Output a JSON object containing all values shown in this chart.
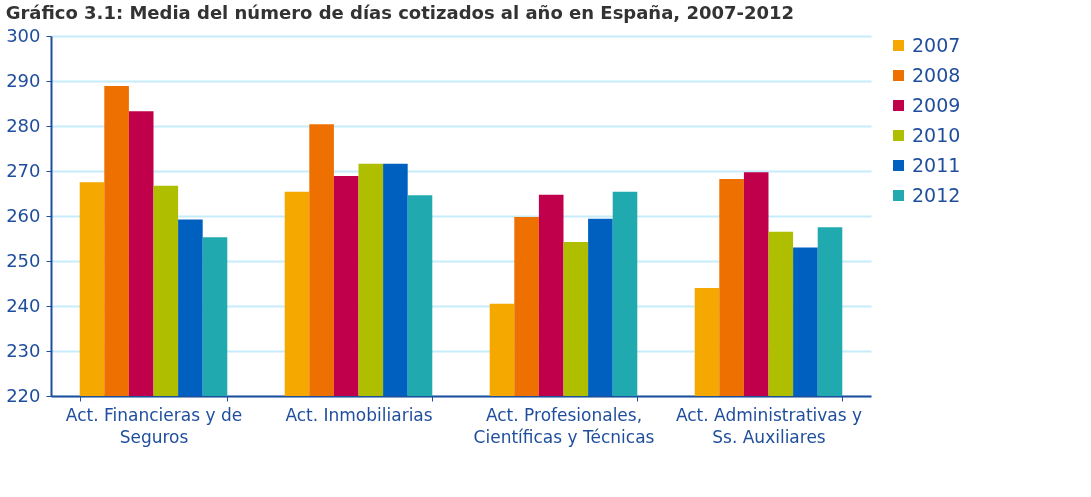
{
  "chart_data": {
    "type": "bar",
    "title": "Gráfico 3.1: Media del número de días cotizados al año en España, 2007-2012",
    "categories": [
      "Act. Financieras y de Seguros",
      "Act. Inmobiliarias",
      "Act. Profesionales, Científicas y Técnicas",
      "Act. Administrativas y Ss. Auxiliares"
    ],
    "series": [
      {
        "name": "2007",
        "color": "#f5a800",
        "values": [
          267.5,
          265.4,
          240.5,
          244.0
        ]
      },
      {
        "name": "2008",
        "color": "#ee7000",
        "values": [
          288.9,
          280.4,
          259.8,
          268.2
        ]
      },
      {
        "name": "2009",
        "color": "#c0004a",
        "values": [
          283.3,
          268.9,
          264.7,
          269.7
        ]
      },
      {
        "name": "2010",
        "color": "#b0be00",
        "values": [
          266.7,
          271.6,
          254.2,
          256.5
        ]
      },
      {
        "name": "2011",
        "color": "#0060c0",
        "values": [
          259.2,
          271.6,
          259.4,
          253.0
        ]
      },
      {
        "name": "2012",
        "color": "#20aab0",
        "values": [
          255.3,
          264.6,
          265.4,
          257.5
        ]
      }
    ],
    "ylim": [
      220,
      300
    ],
    "yticks": [
      220,
      230,
      240,
      250,
      260,
      270,
      280,
      290,
      300
    ],
    "grid": "y",
    "legend": "right"
  }
}
